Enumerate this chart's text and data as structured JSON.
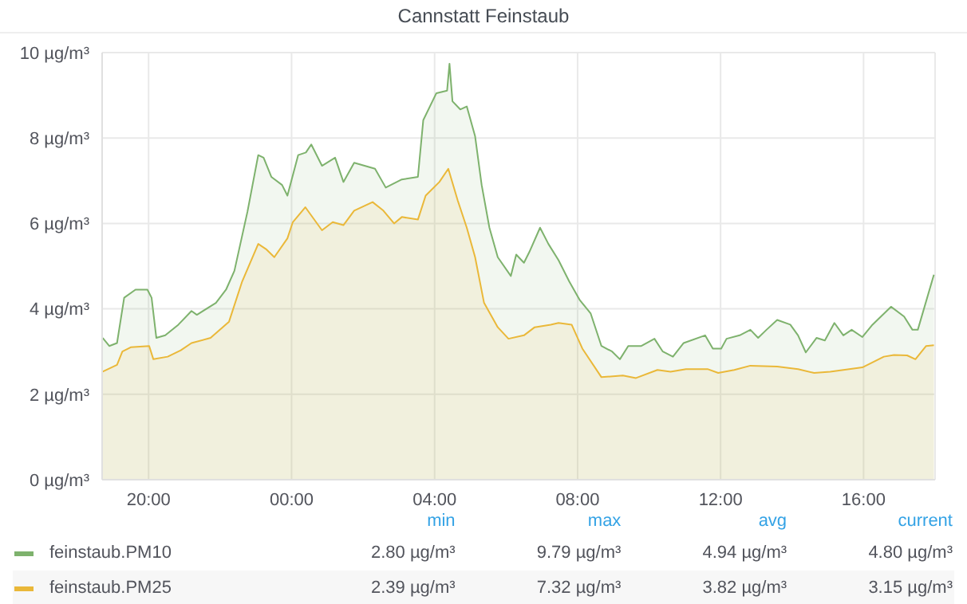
{
  "chart_data": {
    "type": "area",
    "title": "Cannstatt Feinstaub",
    "xlim": [
      "--01-01T18:42",
      "--01-02T18:00"
    ],
    "xticks": [
      {
        "value": "--01-01T20:00",
        "label": "20:00"
      },
      {
        "value": "--01-02T00:00",
        "label": "00:00"
      },
      {
        "value": "--01-02T04:00",
        "label": "04:00"
      },
      {
        "value": "--01-02T08:00",
        "label": "08:00"
      },
      {
        "value": "--01-02T12:00",
        "label": "12:00"
      },
      {
        "value": "--01-02T16:00",
        "label": "16:00"
      }
    ],
    "ylim": [
      0,
      10
    ],
    "yticks": [
      {
        "value": 0,
        "label": "0 µg/m³"
      },
      {
        "value": 2,
        "label": "2 µg/m³"
      },
      {
        "value": 4,
        "label": "4 µg/m³"
      },
      {
        "value": 6,
        "label": "6 µg/m³"
      },
      {
        "value": 8,
        "label": "8 µg/m³"
      },
      {
        "value": 10,
        "label": "10 µg/m³"
      }
    ],
    "grid": true,
    "legend": "bottom",
    "series": [
      {
        "name": "feinstaub.PM10",
        "color": "#7eb26d",
        "x": [
          "--01-01T18:43",
          "--01-01T18:54",
          "--01-01T19:07",
          "--01-01T19:19",
          "--01-01T19:38",
          "--01-01T19:58",
          "--01-01T20:05",
          "--01-01T20:13",
          "--01-01T20:28",
          "--01-01T20:50",
          "--01-01T21:12",
          "--01-01T21:21",
          "--01-01T21:53",
          "--01-01T22:10",
          "--01-01T22:24",
          "--01-01T22:46",
          "--01-01T23:04",
          "--01-01T23:13",
          "--01-01T23:26",
          "--01-01T23:44",
          "--01-01T23:53",
          "--01-02T00:11",
          "--01-02T00:24",
          "--01-02T00:33",
          "--01-02T00:51",
          "--01-02T01:13",
          "--01-02T01:27",
          "--01-02T01:45",
          "--01-02T02:20",
          "--01-02T02:38",
          "--01-02T03:05",
          "--01-02T03:32",
          "--01-02T03:41",
          "--01-02T04:03",
          "--01-02T04:21",
          "--01-02T04:25",
          "--01-02T04:30",
          "--01-02T04:43",
          "--01-02T04:54",
          "--01-02T05:08",
          "--01-02T05:19",
          "--01-02T05:32",
          "--01-02T05:46",
          "--01-02T06:08",
          "--01-02T06:17",
          "--01-02T06:30",
          "--01-02T06:39",
          "--01-02T06:57",
          "--01-02T07:11",
          "--01-02T07:28",
          "--01-02T07:46",
          "--01-02T08:04",
          "--01-02T08:22",
          "--01-02T08:40",
          "--01-02T08:58",
          "--01-02T09:11",
          "--01-02T09:25",
          "--01-02T09:47",
          "--01-02T10:09",
          "--01-02T10:23",
          "--01-02T10:40",
          "--01-02T10:58",
          "--01-02T11:34",
          "--01-02T11:47",
          "--01-02T12:01",
          "--01-02T12:10",
          "--01-02T12:32",
          "--01-02T12:50",
          "--01-02T13:03",
          "--01-02T13:17",
          "--01-02T13:35",
          "--01-02T13:57",
          "--01-02T14:10",
          "--01-02T14:23",
          "--01-02T14:41",
          "--01-02T14:55",
          "--01-02T15:11",
          "--01-02T15:26",
          "--01-02T15:40",
          "--01-02T15:58",
          "--01-02T16:15",
          "--01-02T16:46",
          "--01-02T17:08",
          "--01-02T17:22",
          "--01-02T17:31",
          "--01-02T17:58"
        ],
        "values": [
          3.32,
          3.13,
          3.2,
          4.26,
          4.45,
          4.45,
          4.26,
          3.32,
          3.38,
          3.63,
          3.95,
          3.86,
          4.14,
          4.45,
          4.89,
          6.28,
          7.6,
          7.54,
          7.09,
          6.9,
          6.65,
          7.6,
          7.66,
          7.85,
          7.35,
          7.54,
          6.97,
          7.42,
          7.28,
          6.84,
          7.03,
          7.09,
          8.42,
          9.05,
          9.11,
          9.74,
          8.86,
          8.67,
          8.74,
          8.04,
          6.9,
          5.9,
          5.21,
          4.77,
          5.27,
          5.08,
          5.33,
          5.9,
          5.52,
          5.14,
          4.64,
          4.2,
          3.89,
          3.13,
          3.0,
          2.82,
          3.13,
          3.13,
          3.3,
          3.0,
          2.88,
          3.2,
          3.38,
          3.07,
          3.07,
          3.3,
          3.38,
          3.51,
          3.32,
          3.51,
          3.74,
          3.63,
          3.38,
          2.98,
          3.32,
          3.26,
          3.67,
          3.38,
          3.51,
          3.34,
          3.63,
          4.05,
          3.82,
          3.51,
          3.51,
          4.8
        ]
      },
      {
        "name": "feinstaub.PM25",
        "color": "#eab839",
        "x": [
          "--01-01T18:43",
          "--01-01T19:07",
          "--01-01T19:16",
          "--01-01T19:30",
          "--01-01T20:01",
          "--01-01T20:08",
          "--01-01T20:32",
          "--01-01T20:54",
          "--01-01T21:12",
          "--01-01T21:44",
          "--01-01T22:15",
          "--01-01T22:37",
          "--01-01T23:04",
          "--01-01T23:17",
          "--01-01T23:31",
          "--01-01T23:53",
          "--01-02T00:02",
          "--01-02T00:23",
          "--01-02T00:51",
          "--01-02T01:09",
          "--01-02T01:27",
          "--01-02T01:45",
          "--01-02T02:16",
          "--01-02T02:34",
          "--01-02T02:52",
          "--01-02T03:05",
          "--01-02T03:32",
          "--01-02T03:45",
          "--01-02T04:08",
          "--01-02T04:23",
          "--01-02T04:39",
          "--01-02T04:54",
          "--01-02T05:08",
          "--01-02T05:23",
          "--01-02T05:46",
          "--01-02T06:04",
          "--01-02T06:30",
          "--01-02T06:48",
          "--01-02T07:15",
          "--01-02T07:28",
          "--01-02T07:50",
          "--01-02T08:08",
          "--01-02T08:40",
          "--01-02T09:16",
          "--01-02T09:38",
          "--01-02T10:14",
          "--01-02T10:36",
          "--01-02T11:02",
          "--01-02T11:38",
          "--01-02T11:56",
          "--01-02T12:23",
          "--01-02T12:50",
          "--01-02T13:35",
          "--01-02T14:10",
          "--01-02T14:37",
          "--01-02T15:04",
          "--01-02T15:58",
          "--01-02T16:34",
          "--01-02T16:51",
          "--01-02T17:13",
          "--01-02T17:27",
          "--01-02T17:45",
          "--01-02T17:58"
        ],
        "values": [
          2.53,
          2.69,
          3.0,
          3.1,
          3.13,
          2.82,
          2.88,
          3.03,
          3.2,
          3.32,
          3.7,
          4.64,
          5.52,
          5.4,
          5.21,
          5.65,
          6.03,
          6.38,
          5.84,
          6.03,
          5.96,
          6.3,
          6.5,
          6.3,
          6.0,
          6.15,
          6.09,
          6.65,
          6.97,
          7.28,
          6.53,
          5.9,
          5.21,
          4.14,
          3.57,
          3.3,
          3.38,
          3.57,
          3.63,
          3.67,
          3.63,
          3.07,
          2.4,
          2.44,
          2.38,
          2.57,
          2.53,
          2.59,
          2.59,
          2.5,
          2.57,
          2.67,
          2.65,
          2.59,
          2.5,
          2.53,
          2.63,
          2.88,
          2.92,
          2.91,
          2.82,
          3.13,
          3.15
        ]
      }
    ],
    "annotations": [
      "min",
      "max",
      "avg",
      "current",
      "2.80 µg/m³",
      "9.79 µg/m³",
      "4.94 µg/m³",
      "4.80 µg/m³",
      "2.39 µg/m³",
      "7.32 µg/m³",
      "3.82 µg/m³",
      "3.15 µg/m³"
    ]
  }
}
